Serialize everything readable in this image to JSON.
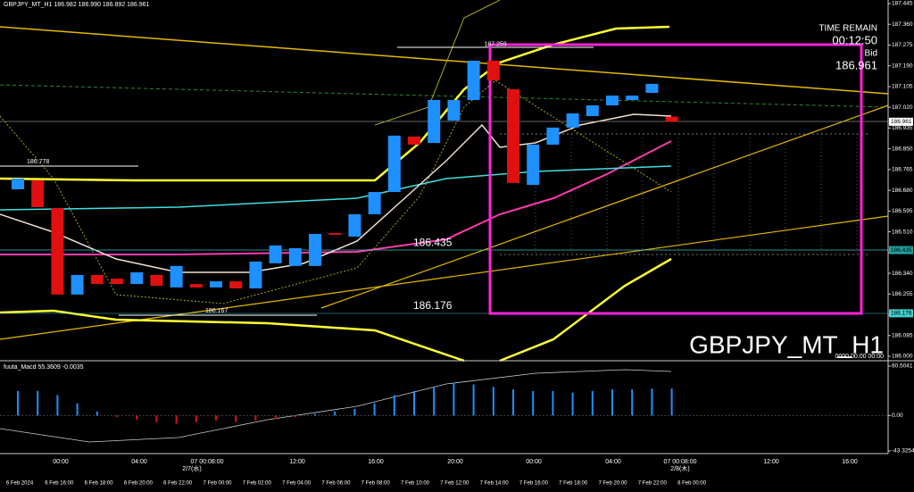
{
  "header": {
    "title": "GBPJPY_MT_H1  186.982 186.990 186.892 186.961"
  },
  "info": {
    "time_remain": "TIME REMAIN",
    "timer": "00:12:50",
    "bid_label": "Bid",
    "bid": "186.961",
    "empty_date": "0000.00.00 00:00"
  },
  "watermark": "GBPJPY_MT_H1",
  "chart_data": [
    {
      "type": "candlestick",
      "up_color": "#1e90ff",
      "down_color": "#e01010",
      "open": [
        186.684,
        186.721,
        186.607,
        186.253,
        186.333,
        186.318,
        186.296,
        186.333,
        186.282,
        186.296,
        186.282,
        186.307,
        186.278,
        186.381,
        186.37,
        186.37,
        186.505,
        186.49,
        186.582,
        186.673,
        186.9,
        186.874,
        186.966,
        187.05,
        187.211,
        187.094,
        186.702,
        186.867,
        186.937,
        186.984,
        187.028,
        187.05,
        187.079,
        186.982
      ],
      "close": [
        186.728,
        186.611,
        186.253,
        186.333,
        186.296,
        186.296,
        186.344,
        186.289,
        186.37,
        186.282,
        186.307,
        186.278,
        186.388,
        186.454,
        186.443,
        186.501,
        186.498,
        186.582,
        186.673,
        186.904,
        186.867,
        187.05,
        187.05,
        187.211,
        187.13,
        186.71,
        186.867,
        186.937,
        186.995,
        187.028,
        187.068,
        187.068,
        187.116,
        186.961
      ],
      "ylim": [
        186.0,
        187.445
      ],
      "yticks": [
        187.445,
        {
          "value": 187.36,
          "label": "187.360"
        },
        187.275,
        {
          "value": 187.19,
          "label": "187.190"
        },
        187.105,
        {
          "value": 187.02,
          "label": "187.020"
        },
        186.935,
        {
          "value": 186.85,
          "label": "186.850"
        },
        186.765,
        {
          "value": 186.68,
          "label": "186.680"
        },
        186.595,
        {
          "value": 186.51,
          "label": "186.510"
        },
        186.425,
        {
          "value": 186.34,
          "label": "186.340"
        },
        186.255,
        {
          "value": 186.17,
          "label": "186.170"
        },
        186.085,
        {
          "value": 186,
          "label": "186.000"
        }
      ],
      "annotations": [
        186.778,
        186.167,
        187.259,
        186.435,
        186.176
      ],
      "price_tags": [
        186.961,
        186.435,
        186.176
      ]
    },
    {
      "type": "bar",
      "label": "fuuta_Macd 55.3609 -0.0035",
      "pos_color": "#1e90ff",
      "neg_color": "#e01010",
      "values": [
        30,
        30,
        25,
        15,
        5,
        -2,
        -5,
        -8,
        -10,
        -8,
        -6,
        -8,
        -6,
        -4,
        -2,
        2,
        5,
        8,
        15,
        25,
        30,
        35,
        40,
        38,
        35,
        32,
        30,
        30,
        28,
        30,
        32,
        32,
        33,
        33
      ],
      "ylim": [
        -43.3254,
        60.5041
      ],
      "yticks": [
        60.5041,
        {
          "value": 0,
          "label": "0.00"
        },
        -43.3254
      ]
    }
  ],
  "time_axis": {
    "major": [
      "00:00",
      "04:00",
      "07 00:08:00",
      "12:00",
      "16:00",
      "20:00",
      "00:00",
      "04:00",
      "07 00:08:00",
      "12:00",
      "16:00"
    ],
    "dates": [
      "2/7(水)",
      "2/8(木)"
    ],
    "minor": [
      "6 Feb 2024",
      "6 Feb 16:00",
      "6 Feb 18:00",
      "6 Feb 20:00",
      "6 Feb 22:00",
      "7 Feb 00:00",
      "7 Feb 02:00",
      "7 Feb 04:00",
      "7 Feb 06:00",
      "7 Feb 08:00",
      "7 Feb 10:00",
      "7 Feb 12:00",
      "7 Feb 14:00",
      "7 Feb 16:00",
      "7 Feb 18:00",
      "7 Feb 20:00",
      "7 Feb 22:00",
      "8 Feb 00:00"
    ]
  }
}
